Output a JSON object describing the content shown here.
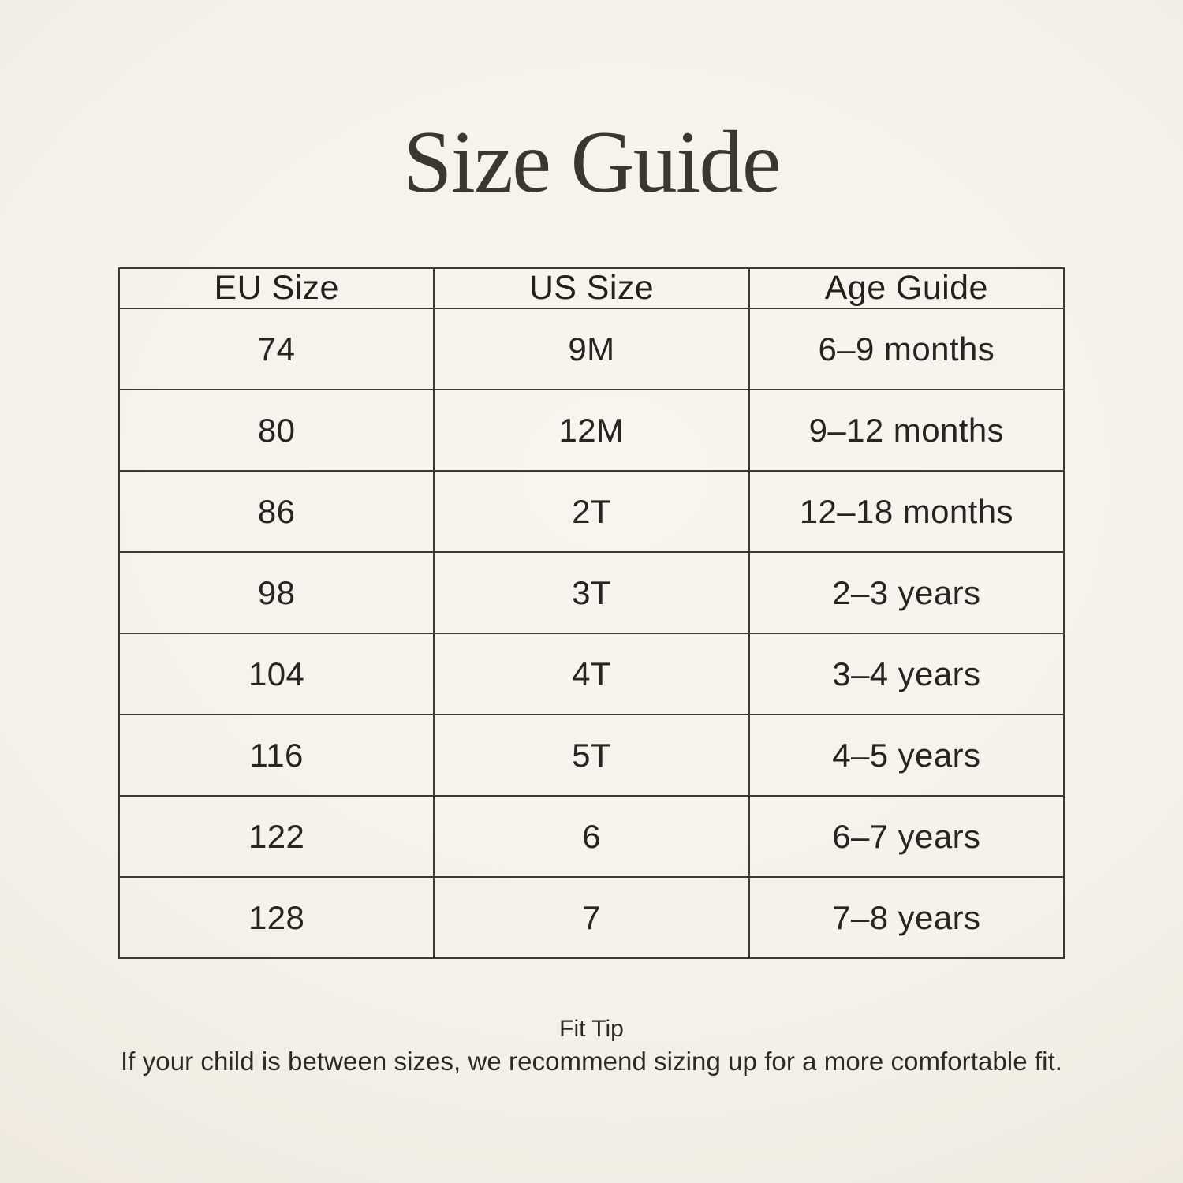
{
  "title": "Size Guide",
  "table": {
    "headers": [
      "EU Size",
      "US Size",
      "Age Guide"
    ],
    "rows": [
      [
        "74",
        "9M",
        "6–9 months"
      ],
      [
        "80",
        "12M",
        "9–12 months"
      ],
      [
        "86",
        "2T",
        "12–18 months"
      ],
      [
        "98",
        "3T",
        "2–3 years"
      ],
      [
        "104",
        "4T",
        "3–4 years"
      ],
      [
        "116",
        "5T",
        "4–5 years"
      ],
      [
        "122",
        "6",
        "6–7 years"
      ],
      [
        "128",
        "7",
        "7–8 years"
      ]
    ]
  },
  "footer": {
    "tip_title": "Fit Tip",
    "tip_text": "If your child is between sizes, we recommend sizing up for a more comfortable fit."
  },
  "colors": {
    "background_center": "#f8f5ee",
    "background_edge": "#e7e0d4",
    "table_border": "#3d3a33",
    "text": "#272521",
    "title_text": "#3a372f"
  }
}
